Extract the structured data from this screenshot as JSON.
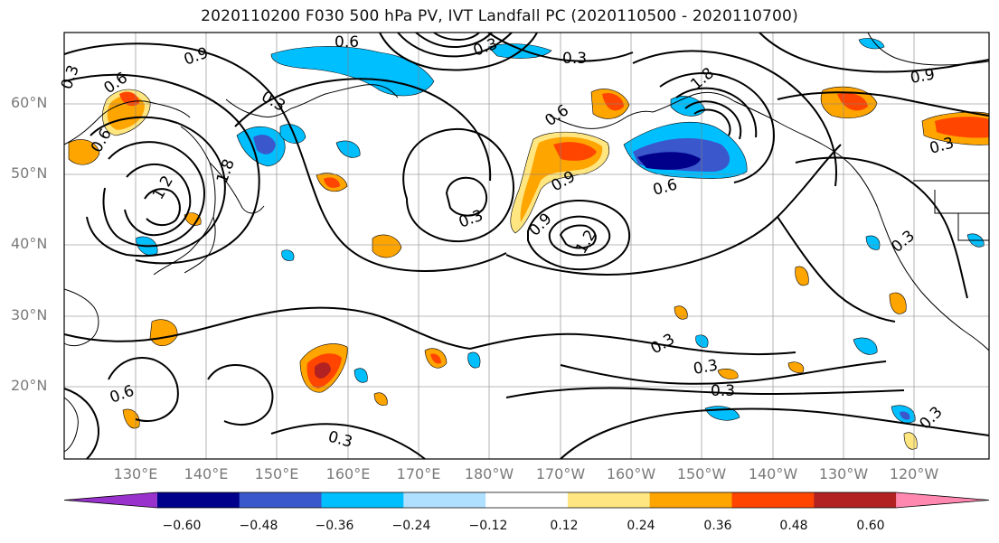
{
  "title": "2020110200 F030 500 hPa PV, IVT Landfall PC (2020110500 - 2020110700)",
  "lat_labels": [
    "60°N",
    "50°N",
    "40°N",
    "30°N",
    "20°N"
  ],
  "lon_labels": [
    "130°E",
    "140°E",
    "150°E",
    "160°E",
    "170°E",
    "180°W",
    "170°W",
    "160°W",
    "150°W",
    "140°W",
    "130°W",
    "120°W"
  ],
  "contour_labels": [
    "0.9",
    "0.6",
    "0.3",
    "0.3",
    "0.6",
    "0.6",
    "0.6",
    "0.3",
    "1.2",
    "1.8",
    "0.3",
    "0.3",
    "0.9",
    "0.9",
    "1.8",
    "1.2",
    "0.6",
    "0.9",
    "0.3",
    "0.3",
    "0.3",
    "0.3",
    "0.3",
    "0.3",
    "0.6",
    "0.3"
  ],
  "colorbar": {
    "ticks": [
      "−0.60",
      "−0.48",
      "−0.36",
      "−0.24",
      "−0.12",
      "0.12",
      "0.24",
      "0.36",
      "0.48",
      "0.60"
    ],
    "bins": [
      "#9932cc",
      "#00008b",
      "#3a57cc",
      "#00bfff",
      "#b0e0ff",
      "#ffffff",
      "#ffe680",
      "#ffa500",
      "#ff4500",
      "#b22222",
      "#ff88b0"
    ]
  },
  "colors": {
    "frame": "#000000",
    "grid": "#808080",
    "contour": "#000000",
    "labels": "#7a7a7a"
  }
}
